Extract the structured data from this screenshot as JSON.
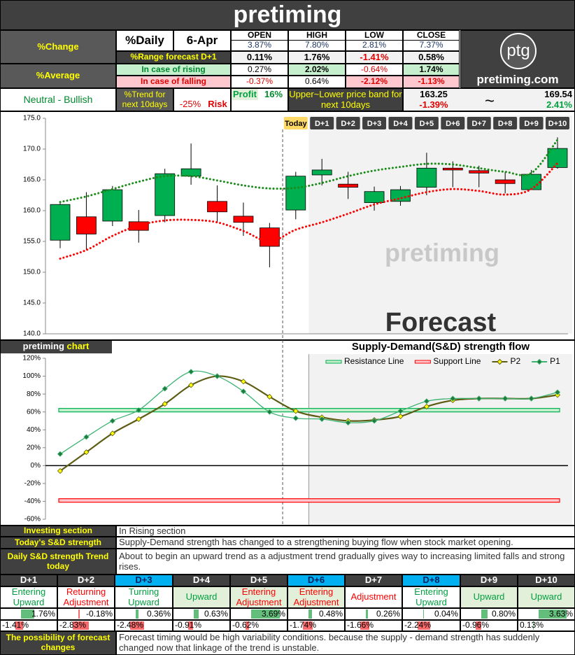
{
  "title": "pretiming",
  "summary": {
    "change_label": "%Change",
    "average_label": "%Average",
    "outlook": "Neutral - Bullish",
    "daily_label": "%Daily",
    "date": "6-Apr",
    "columns": [
      "OPEN",
      "HIGH",
      "LOW",
      "CLOSE"
    ],
    "daily": [
      "3.87%",
      "7.80%",
      "2.81%",
      "7.37%"
    ],
    "range_label": "%Range forecast D+1",
    "range": [
      "0.11%",
      "1.76%",
      "-1.41%",
      "0.58%"
    ],
    "rising_label": "In case of rising",
    "rising": [
      "0.27%",
      "2.02%",
      "-0.64%",
      "1.74%"
    ],
    "falling_label": "In case of falling",
    "falling": [
      "-0.37%",
      "0.64%",
      "-2.12%",
      "-1.13%"
    ],
    "trend_label": "%Trend for next 10days",
    "risk_value": "-25%",
    "risk_label": "Risk",
    "profit_label": "Profit",
    "profit_value": "16%",
    "band_label": "Upper~Lower price band for next 10days",
    "band_low": "163.25",
    "band_low_pct": "-1.39%",
    "band_sep": "~",
    "band_high": "169.54",
    "band_high_pct": "2.41%"
  },
  "logo": {
    "mark": "ptg",
    "site": "pretiming.com"
  },
  "chart_data": [
    {
      "type": "candlestick",
      "categories": [
        null,
        null,
        null,
        null,
        null,
        null,
        null,
        null,
        null,
        "Today",
        "D+1",
        "D+2",
        "D+3",
        "D+4",
        "D+5",
        "D+6",
        "D+7",
        "D+8",
        "D+9",
        "D+10"
      ],
      "open": [
        155.2,
        159.0,
        158.3,
        158.2,
        159.2,
        165.6,
        161.5,
        159.1,
        157.2,
        160.1,
        165.8,
        164.3,
        161.3,
        161.5,
        163.8,
        166.9,
        166.5,
        165.0,
        163.4,
        167.0
      ],
      "high": [
        161.4,
        163.0,
        164.0,
        160.1,
        166.8,
        170.9,
        164.1,
        161.3,
        158.0,
        166.3,
        168.4,
        166.3,
        163.9,
        164.0,
        169.4,
        168.0,
        167.3,
        166.3,
        166.6,
        171.9
      ],
      "low": [
        153.9,
        153.6,
        157.5,
        154.8,
        158.1,
        164.2,
        158.1,
        155.9,
        150.8,
        158.6,
        164.1,
        161.9,
        160.0,
        160.8,
        162.5,
        163.8,
        163.8,
        162.8,
        163.4,
        166.8
      ],
      "close": [
        161.0,
        156.2,
        163.4,
        156.8,
        166.0,
        166.8,
        159.8,
        158.1,
        154.2,
        165.6,
        166.6,
        163.8,
        163.1,
        163.4,
        166.9,
        166.6,
        166.1,
        164.4,
        165.9,
        170.1
      ],
      "up_color": "#00b050",
      "down_color": "#ff0000",
      "bands": [
        {
          "color": "#1a8c1a",
          "values": [
            161.4,
            162.3,
            163.5,
            164.7,
            165.6,
            165.6,
            164.9,
            164.1,
            163.6,
            163.7,
            164.5,
            165.6,
            166.5,
            167.1,
            167.6,
            167.5,
            166.9,
            166.3,
            166.1,
            171.5
          ]
        },
        {
          "color": "#ff0000",
          "values": [
            152.2,
            153.6,
            155.9,
            157.6,
            158.4,
            158.5,
            158.1,
            156.7,
            155.0,
            156.9,
            158.1,
            159.5,
            161.0,
            162.0,
            163.0,
            163.5,
            163.2,
            162.6,
            163.5,
            167.7
          ]
        }
      ],
      "ylim": [
        140,
        175
      ],
      "yticks": [
        {
          "value": 140,
          "label": "140.0"
        },
        {
          "value": 145,
          "label": "145.0"
        },
        {
          "value": 150,
          "label": "150.0"
        },
        {
          "value": 155,
          "label": "155.0"
        },
        {
          "value": 160,
          "label": "160.0"
        },
        {
          "value": 165,
          "label": "165.0"
        },
        {
          "value": 170,
          "label": "170.0"
        },
        {
          "value": 175,
          "label": "175.0"
        }
      ],
      "watermark": "pretiming",
      "annotation": "Forecast"
    },
    {
      "type": "line",
      "title": "Supply-Demand(S&D) strength flow",
      "label": "pretiming",
      "label_accent": "chart",
      "ylim": [
        -60,
        120
      ],
      "yticks": [
        {
          "value": -60,
          "label": "-60%"
        },
        {
          "value": -40,
          "label": "-40%"
        },
        {
          "value": -20,
          "label": "-20%"
        },
        {
          "value": 0,
          "label": "0%"
        },
        {
          "value": 20,
          "label": "20%"
        },
        {
          "value": 40,
          "label": "40%"
        },
        {
          "value": 60,
          "label": "60%"
        },
        {
          "value": 80,
          "label": "80%"
        },
        {
          "value": 100,
          "label": "100%"
        },
        {
          "value": 120,
          "label": "120%"
        }
      ],
      "levels": [
        {
          "name": "Resistance Line",
          "color": "#00b050",
          "fill": "#c6efce",
          "value": 62
        },
        {
          "name": "Support Line",
          "color": "#ff0000",
          "fill": "#ffc7ce",
          "value": -39
        }
      ],
      "series": [
        {
          "name": "P2",
          "color": "#5c5c14",
          "marker_color": "#ffff00",
          "values": [
            -6,
            15,
            36,
            52,
            69,
            90,
            100,
            94,
            77,
            61,
            54,
            50,
            51,
            55,
            66,
            73,
            75,
            75,
            75,
            79
          ]
        },
        {
          "name": "P1",
          "color": "#3cb371",
          "marker_color": "#1e7b3c",
          "values": [
            13,
            32,
            50,
            62,
            86,
            105,
            100,
            83,
            60,
            53,
            52,
            48,
            50,
            61,
            72,
            75,
            75,
            75,
            75,
            82
          ]
        }
      ]
    }
  ],
  "sections": [
    {
      "label": "Investing section",
      "text": "In Rising section"
    },
    {
      "label": "Today's S&D strength",
      "text": "Supply-Demand strength has changed to a strengthening buying flow when stock market opening."
    },
    {
      "label": "Daily S&D strength Trend today",
      "text": "About to begin an upward trend as a adjustment trend gradually gives way to increasing limited falls and strong rises."
    }
  ],
  "forecast": {
    "days": [
      "D+1",
      "D+2",
      "D+3",
      "D+4",
      "D+5",
      "D+6",
      "D+7",
      "D+8",
      "D+9",
      "D+10"
    ],
    "highlight": [
      false,
      false,
      true,
      false,
      false,
      true,
      false,
      true,
      false,
      false
    ],
    "status": [
      "Entering Upward",
      "Returning Adjustment",
      "Turning Upward",
      "Upward",
      "Entering Adjustment",
      "Entering Adjustment",
      "Adjustment",
      "Entering Upward",
      "Upward",
      "Upward"
    ],
    "status_colors": [
      "#00a040",
      "#ff0000",
      "#00a040",
      "#00a040",
      "#ff0000",
      "#ff0000",
      "#ff0000",
      "#00a040",
      "#00a040",
      "#00a040"
    ],
    "status_bg": [
      "#ffffff",
      "#ffffff",
      "#ffffff",
      "#e2f0d9",
      "#e2f0d9",
      "#e2f0d9",
      "#ffffff",
      "#ffffff",
      "#e2f0d9",
      "#e2f0d9"
    ],
    "up": {
      "values": [
        1.76,
        -0.18,
        0.36,
        0.63,
        3.69,
        0.48,
        0.26,
        0.04,
        0.8,
        3.63
      ],
      "value_labels": [
        "1.76%",
        "-0.18%",
        "0.36%",
        "0.63%",
        "3.69%",
        "0.48%",
        "0.26%",
        "0.04%",
        "0.80%",
        "3.63%"
      ]
    },
    "down": {
      "values": [
        -1.41,
        -2.83,
        -2.48,
        -0.91,
        -0.62,
        -1.74,
        -1.66,
        -2.24,
        -0.96,
        0.13
      ],
      "value_labels": [
        "-1.41%",
        "-2.83%",
        "-2.48%",
        "-0.91%",
        "-0.62%",
        "-1.74%",
        "-1.66%",
        "-2.24%",
        "-0.96%",
        "0.13%"
      ]
    },
    "pos_color": "#63be7b",
    "neg_color": "#f8696b"
  },
  "note": {
    "label": "The possibility of forecast changes",
    "text": "Forecast timing would be high variability conditions. because the supply - demand strength has suddenly changed now that linkage of the trend is unstable."
  }
}
